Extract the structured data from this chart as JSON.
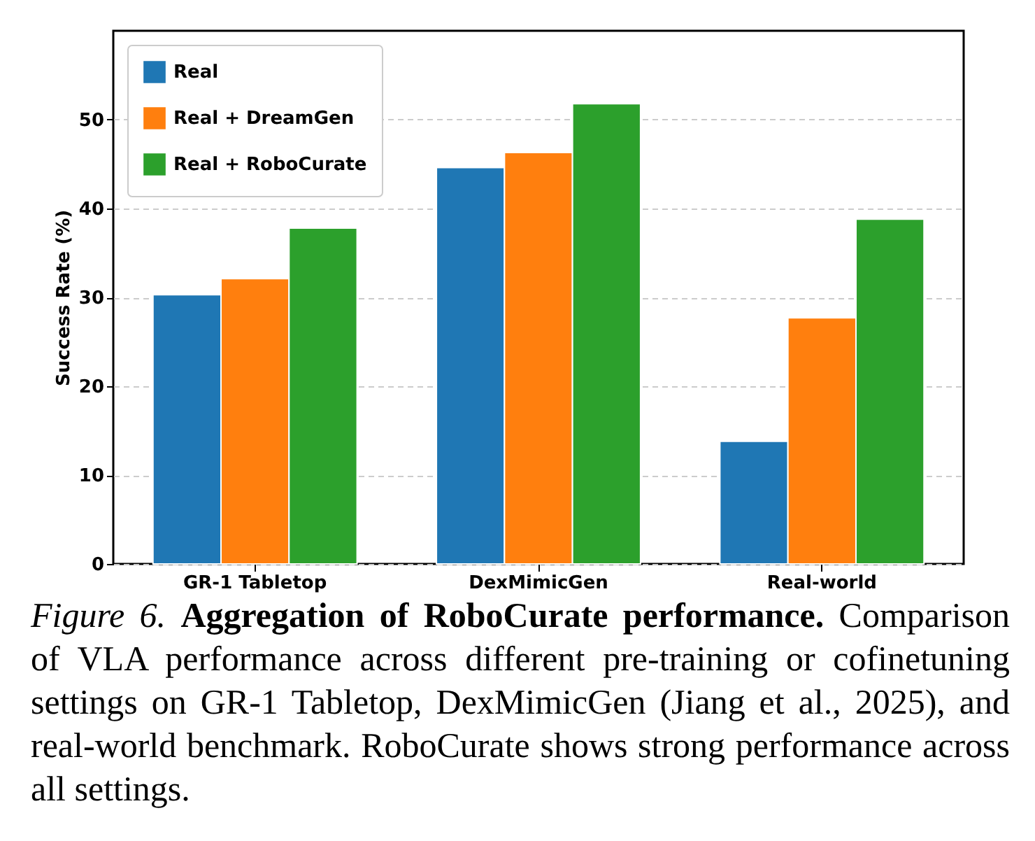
{
  "chart_data": {
    "type": "bar",
    "ylabel": "Success Rate (%)",
    "categories": [
      "GR-1 Tabletop",
      "DexMimicGen",
      "Real-world"
    ],
    "series": [
      {
        "name": "Real",
        "color": "#1f77b4",
        "values": [
          30.3,
          44.6,
          13.8
        ]
      },
      {
        "name": "Real + DreamGen",
        "color": "#ff7f0e",
        "values": [
          32.1,
          46.3,
          27.7
        ]
      },
      {
        "name": "Real + RoboCurate",
        "color": "#2ca02c",
        "values": [
          37.8,
          51.8,
          38.8
        ]
      }
    ],
    "ylim": [
      0,
      60
    ],
    "yticks": [
      0,
      10,
      20,
      30,
      40,
      50
    ],
    "grid": "y",
    "legend": "top left",
    "annotations": [
      "Figure 6.",
      "Aggregation of RoboCurate performance.",
      "Comparison of VLA performance across different pre-training or cofinetuning settings on GR-1 Tabletop, DexMimicGen (Jiang et al., 2025), and real-world benchmark. RoboCurate shows strong performance across all settings."
    ]
  }
}
